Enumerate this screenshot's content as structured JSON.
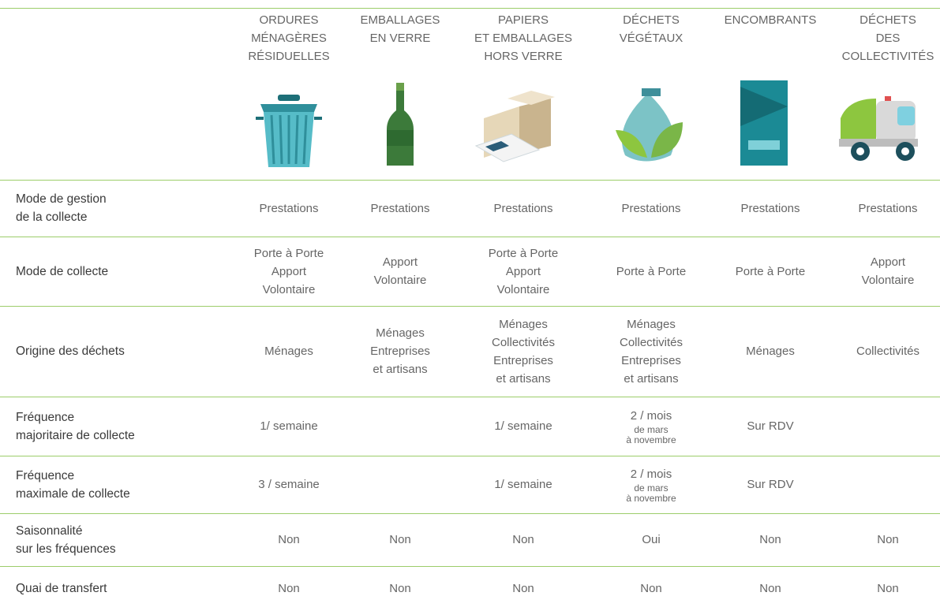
{
  "header": {
    "columns": [
      [
        "ORDURES",
        "MÉNAGÈRES",
        "RÉSIDUELLES"
      ],
      [
        "EMBALLAGES",
        "EN VERRE"
      ],
      [
        "PAPIERS",
        "ET EMBALLAGES",
        "HORS VERRE"
      ],
      [
        "DÉCHETS",
        "VÉGÉTAUX"
      ],
      [
        "ENCOMBRANTS"
      ],
      [
        "DÉCHETS",
        "DES",
        "COLLECTIVITÉS"
      ]
    ]
  },
  "table": {
    "rows": [
      {
        "label": [
          "Mode de gestion",
          "de la collecte"
        ],
        "cells": [
          [
            "Prestations"
          ],
          [
            "Prestations"
          ],
          [
            "Prestations"
          ],
          [
            "Prestations"
          ],
          [
            "Prestations"
          ],
          [
            "Prestations"
          ]
        ]
      },
      {
        "label": [
          "Mode de collecte"
        ],
        "cells": [
          [
            "Porte à Porte",
            "Apport",
            "Volontaire"
          ],
          [
            "Apport",
            "Volontaire"
          ],
          [
            "Porte à Porte",
            "Apport",
            "Volontaire"
          ],
          [
            "Porte à Porte"
          ],
          [
            "Porte à Porte"
          ],
          [
            "Apport",
            "Volontaire"
          ]
        ]
      },
      {
        "label": [
          "Origine des déchets"
        ],
        "cells": [
          [
            "Ménages"
          ],
          [
            "Ménages",
            "Entreprises",
            "et artisans"
          ],
          [
            "Ménages",
            "Collectivités",
            "Entreprises",
            "et artisans"
          ],
          [
            "Ménages",
            "Collectivités",
            "Entreprises",
            "et artisans"
          ],
          [
            "Ménages"
          ],
          [
            "Collectivités"
          ]
        ]
      },
      {
        "label": [
          "Fréquence",
          "majoritaire de collecte"
        ],
        "cells": [
          [
            "1/ semaine"
          ],
          null,
          [
            "1/ semaine"
          ],
          {
            "main": "2 / mois",
            "note": [
              "de mars",
              "à novembre"
            ]
          },
          [
            "Sur RDV"
          ],
          null
        ]
      },
      {
        "label": [
          "Fréquence",
          "maximale de collecte"
        ],
        "cells": [
          [
            "3 / semaine"
          ],
          null,
          [
            "1/ semaine"
          ],
          {
            "main": "2 / mois",
            "note": [
              "de mars",
              "à novembre"
            ]
          },
          [
            "Sur RDV"
          ],
          null
        ]
      },
      {
        "label": [
          "Saisonnalité",
          "sur les fréquences"
        ],
        "cells": [
          [
            "Non"
          ],
          [
            "Non"
          ],
          [
            "Non"
          ],
          [
            "Oui"
          ],
          [
            "Non"
          ],
          [
            "Non"
          ]
        ]
      },
      {
        "label": [
          "Quai de transfert"
        ],
        "cells": [
          [
            "Non"
          ],
          [
            "Non"
          ],
          [
            "Non"
          ],
          [
            "Non"
          ],
          [
            "Non"
          ],
          [
            "Non"
          ]
        ]
      }
    ]
  }
}
